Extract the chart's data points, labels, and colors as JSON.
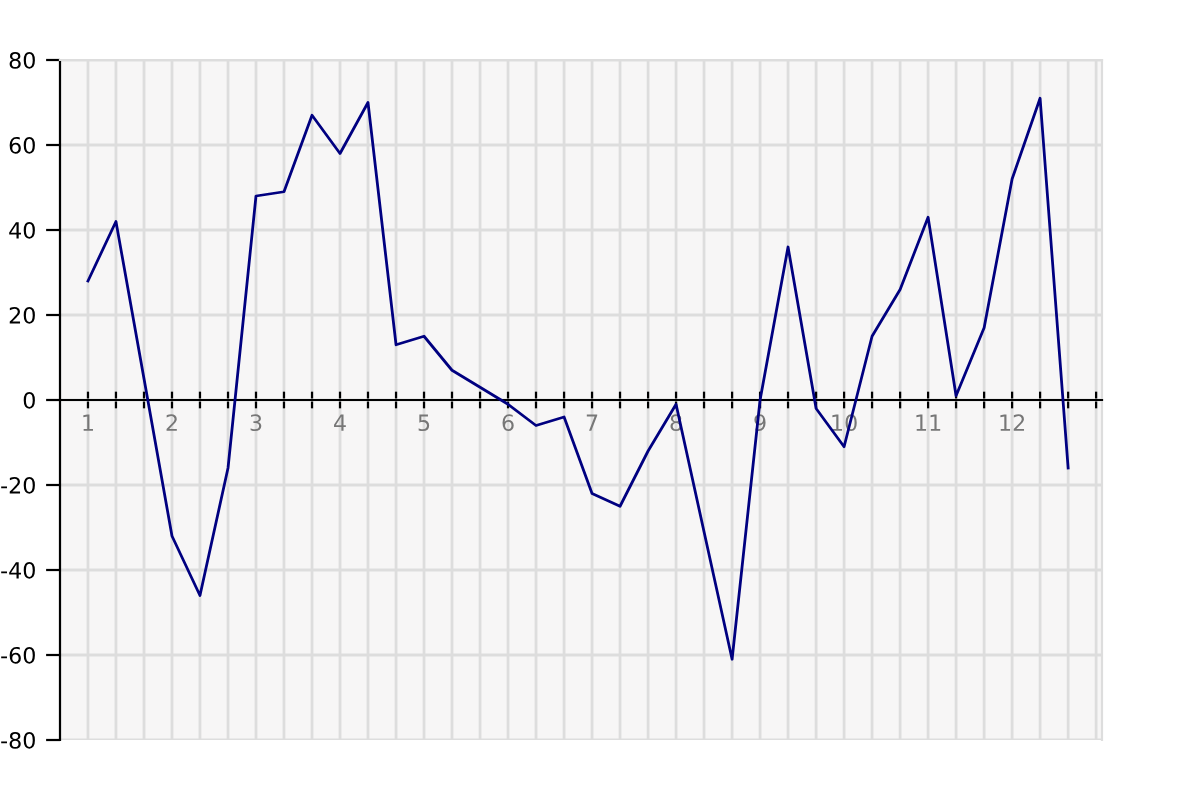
{
  "chart_data": {
    "type": "line",
    "x": [
      1,
      1.333,
      1.667,
      2,
      2.333,
      2.667,
      3,
      3.333,
      3.667,
      4,
      4.333,
      4.667,
      5,
      5.333,
      5.667,
      6,
      6.333,
      6.667,
      7,
      7.333,
      7.667,
      8,
      8.333,
      8.667,
      9,
      9.333,
      9.667,
      10,
      10.333,
      10.667,
      11,
      11.333,
      11.667,
      12,
      12.333,
      12.667
    ],
    "series": [
      {
        "color": "#000080",
        "values": [
          28,
          42,
          5,
          -32,
          -46,
          -16,
          48,
          49,
          67,
          58,
          70,
          13,
          15,
          7,
          3,
          -1,
          -6,
          -4,
          -22,
          -25,
          -12,
          -1,
          -31,
          -61,
          0,
          36,
          -2,
          -11,
          15,
          26,
          43,
          1,
          17,
          52,
          71,
          -16
        ]
      }
    ],
    "xlim": [
      0.667,
      13.07
    ],
    "xticks": [
      {
        "value": 1,
        "label": "1"
      },
      {
        "value": 1.333,
        "label": null
      },
      {
        "value": 1.667,
        "label": null
      },
      {
        "value": 2,
        "label": "2"
      },
      {
        "value": 2.333,
        "label": null
      },
      {
        "value": 2.667,
        "label": null
      },
      {
        "value": 3,
        "label": "3"
      },
      {
        "value": 3.333,
        "label": null
      },
      {
        "value": 3.667,
        "label": null
      },
      {
        "value": 4,
        "label": "4"
      },
      {
        "value": 4.333,
        "label": null
      },
      {
        "value": 4.667,
        "label": null
      },
      {
        "value": 5,
        "label": "5"
      },
      {
        "value": 5.333,
        "label": null
      },
      {
        "value": 5.667,
        "label": null
      },
      {
        "value": 6,
        "label": "6"
      },
      {
        "value": 6.333,
        "label": null
      },
      {
        "value": 6.667,
        "label": null
      },
      {
        "value": 7,
        "label": "7"
      },
      {
        "value": 7.333,
        "label": null
      },
      {
        "value": 7.667,
        "label": null
      },
      {
        "value": 8,
        "label": "8"
      },
      {
        "value": 8.333,
        "label": null
      },
      {
        "value": 8.667,
        "label": null
      },
      {
        "value": 9,
        "label": "9"
      },
      {
        "value": 9.333,
        "label": null
      },
      {
        "value": 9.667,
        "label": null
      },
      {
        "value": 10,
        "label": "10"
      },
      {
        "value": 10.333,
        "label": null
      },
      {
        "value": 10.667,
        "label": null
      },
      {
        "value": 11,
        "label": "11"
      },
      {
        "value": 11.333,
        "label": null
      },
      {
        "value": 11.667,
        "label": null
      },
      {
        "value": 12,
        "label": "12"
      },
      {
        "value": 12.333,
        "label": null
      },
      {
        "value": 12.667,
        "label": null
      },
      {
        "value": 13,
        "label": null
      }
    ],
    "ylim": [
      -80,
      80
    ],
    "yticks": [
      -80,
      -60,
      -40,
      -20,
      0,
      20,
      40,
      60,
      80
    ],
    "grid": true,
    "marker": "none",
    "line_style": "solid"
  }
}
